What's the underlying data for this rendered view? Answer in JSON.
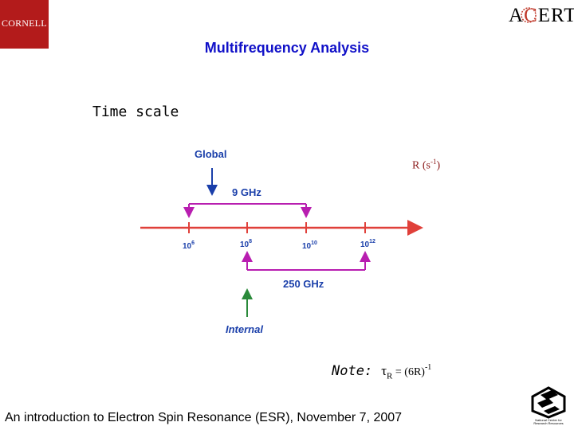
{
  "logos": {
    "left_text": "CORNELL",
    "right_text_prefix": "A",
    "right_text_accent": "C",
    "right_text_suffix": "ERT",
    "right_caption": "National Center for Research Resources"
  },
  "title": "Multifrequency Analysis",
  "time_scale_label": "Time scale",
  "r_unit": {
    "prefix": "R (s",
    "exp": "-1",
    "suffix": ")"
  },
  "diagram": {
    "global_label": "Global",
    "internal_label": "Internal",
    "band_9ghz": "9 GHz",
    "band_250ghz": "250 GHz",
    "ticks": [
      {
        "base": "10",
        "exp": "6"
      },
      {
        "base": "10",
        "exp": "8"
      },
      {
        "base": "10",
        "exp": "10"
      },
      {
        "base": "10",
        "exp": "12"
      }
    ],
    "colors": {
      "axis": "#e0403a",
      "band": "#b81eb0",
      "blue": "#1a3faa",
      "green": "#2a8a3a"
    }
  },
  "note": {
    "label": "Note:",
    "tau": "τ",
    "subscript": "R",
    "equals": " = (6R)",
    "exp": "-1"
  },
  "footer": "An introduction to Electron Spin Resonance (ESR), November 7, 2007"
}
